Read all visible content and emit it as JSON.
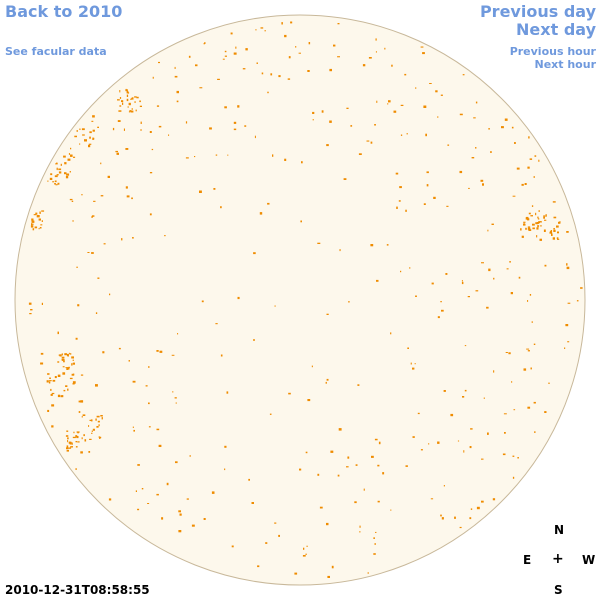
{
  "nav": {
    "back": "Back to 2010",
    "facular": "See facular data",
    "prev_day": "Previous day",
    "next_day": "Next day",
    "prev_hour": "Previous hour",
    "next_hour": "Next hour"
  },
  "compass": {
    "n": "N",
    "e": "E",
    "center": "+",
    "w": "W",
    "s": "S"
  },
  "timestamp": "2010-12-31T08:58:55",
  "colors": {
    "disk_fill": "#fdf8ec",
    "disk_edge": "#c8b89a",
    "spot": "#ef8c00",
    "link": "#6f99dd"
  }
}
